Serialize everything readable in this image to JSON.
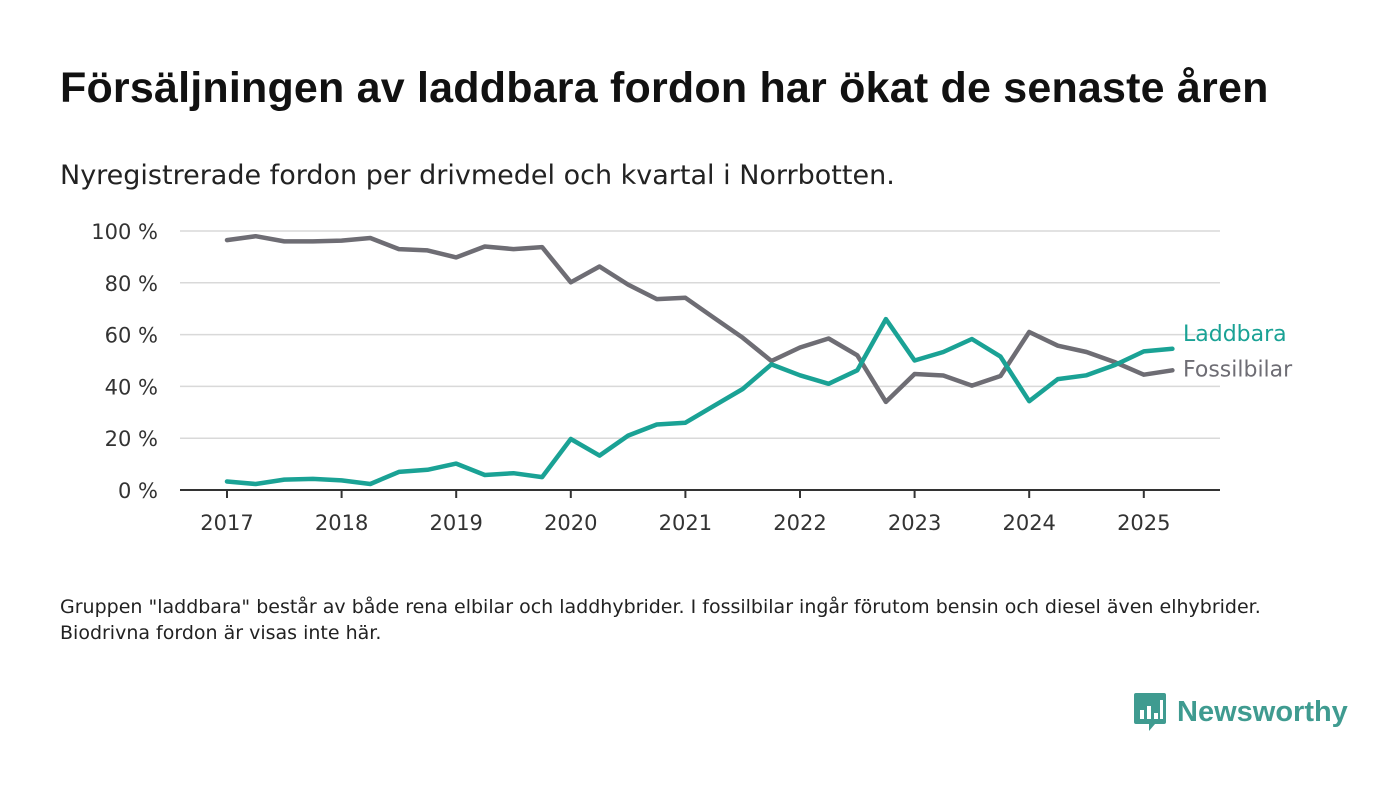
{
  "title": "Försäljningen av laddbara fordon har ökat de senaste åren",
  "subtitle": "Nyregistrerade fordon per drivmedel och kvartal i Norrbotten.",
  "note": "Gruppen \"laddbara\" består av både rena elbilar och laddhybrider. I fossilbilar ingår förutom bensin och diesel även elhybrider. Biodrivna fordon är visas inte här.",
  "brand": {
    "name": "Newsworthy",
    "icon": "newsworthy-logo-icon",
    "color": "#3f9b90"
  },
  "chart_data": {
    "type": "line",
    "x_ticks": [
      "2017",
      "2018",
      "2019",
      "2020",
      "2021",
      "2022",
      "2023",
      "2024",
      "2025"
    ],
    "y_ticks": [
      "0 %",
      "20 %",
      "40 %",
      "60 %",
      "80 %",
      "100 %"
    ],
    "ylim": [
      0,
      100
    ],
    "y_unit": "%",
    "grid": true,
    "x": [
      "2017-Q1",
      "2017-Q2",
      "2017-Q3",
      "2017-Q4",
      "2018-Q1",
      "2018-Q2",
      "2018-Q3",
      "2018-Q4",
      "2019-Q1",
      "2019-Q2",
      "2019-Q3",
      "2019-Q4",
      "2020-Q1",
      "2020-Q2",
      "2020-Q3",
      "2020-Q4",
      "2021-Q1",
      "2021-Q2",
      "2021-Q3",
      "2021-Q4",
      "2022-Q1",
      "2022-Q2",
      "2022-Q3",
      "2022-Q4",
      "2023-Q1",
      "2023-Q2",
      "2023-Q3",
      "2023-Q4",
      "2024-Q1",
      "2024-Q2",
      "2024-Q3",
      "2024-Q4",
      "2025-Q1",
      "2025-Q2"
    ],
    "series": [
      {
        "name": "Fossilbilar",
        "color": "#6e6d74",
        "values": [
          96.5,
          98,
          96,
          96,
          96.3,
          97.3,
          93,
          92.5,
          89.8,
          94,
          93,
          93.8,
          80.2,
          86.3,
          79.3,
          73.7,
          74.2,
          66.5,
          58.8,
          49.8,
          55,
          58.5,
          52,
          34,
          44.8,
          44.2,
          40.3,
          44,
          61,
          55.7,
          53.3,
          49.3,
          44.5,
          46.2
        ]
      },
      {
        "name": "Laddbara",
        "color": "#1aa295",
        "values": [
          3.3,
          2.3,
          4,
          4.3,
          3.7,
          2.3,
          7,
          7.8,
          10.2,
          5.8,
          6.5,
          5,
          19.7,
          13.3,
          21,
          25.3,
          26,
          32.5,
          39,
          48.5,
          44.3,
          41,
          46.2,
          66,
          50,
          53.3,
          58.3,
          51.5,
          34.3,
          42.8,
          44.3,
          48.3,
          53.5,
          54.5
        ]
      }
    ]
  }
}
